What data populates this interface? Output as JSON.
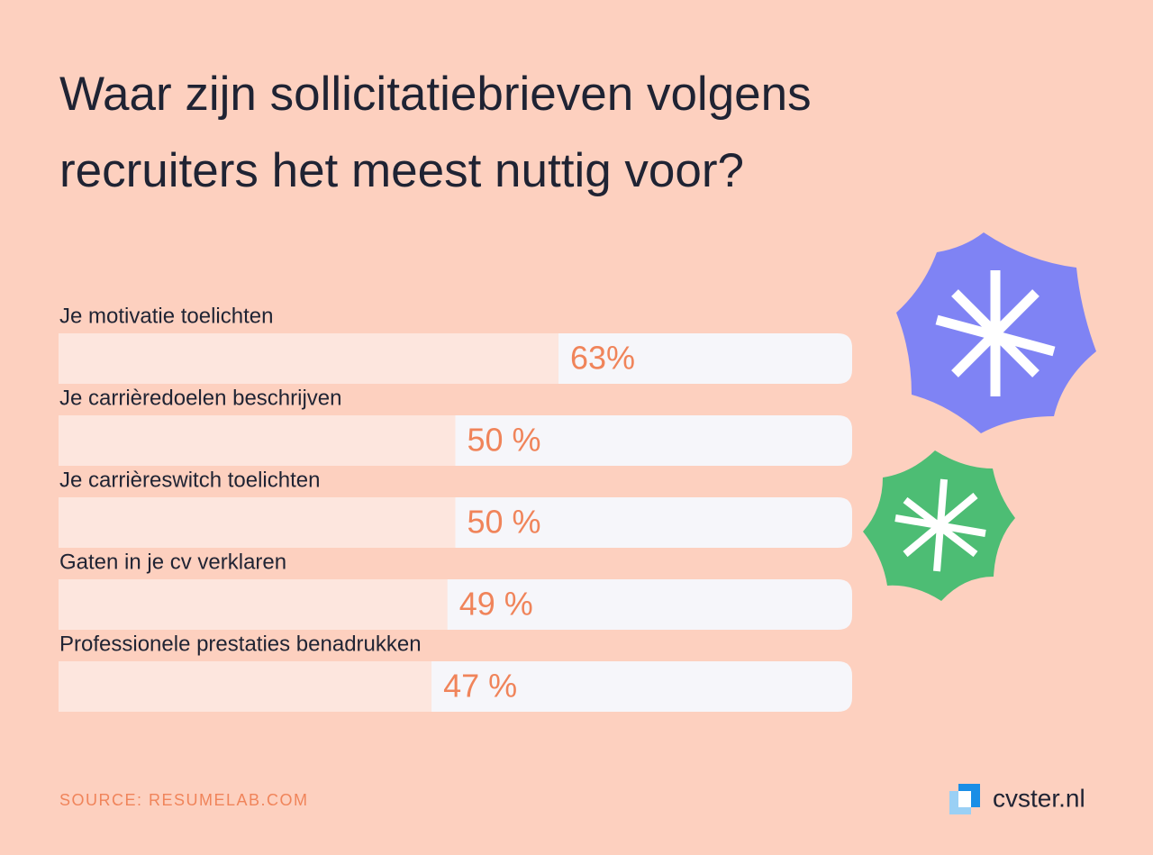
{
  "chart_data": {
    "type": "bar",
    "title": [
      "Waar zijn sollicitatiebrieven volgens",
      "recruiters het meest nuttig voor?"
    ],
    "categories": [
      "Je motivatie toelichten",
      "Je carrièredoelen beschrijven",
      "Je carrièreswitch toelichten",
      "Gaten in je cv verklaren",
      "Professionele prestaties benadrukken"
    ],
    "values": [
      63,
      50,
      50,
      49,
      47
    ],
    "value_labels": [
      "63%",
      "50 %",
      "50 %",
      "49 %",
      "47 %"
    ],
    "color": "#fde6de",
    "track_color": "#f6f6fa",
    "label_color": "#f0845a",
    "xlim": [
      0,
      100
    ],
    "source": "SOURCE: RESUMELAB.COM",
    "brand": "cvster.nl"
  }
}
